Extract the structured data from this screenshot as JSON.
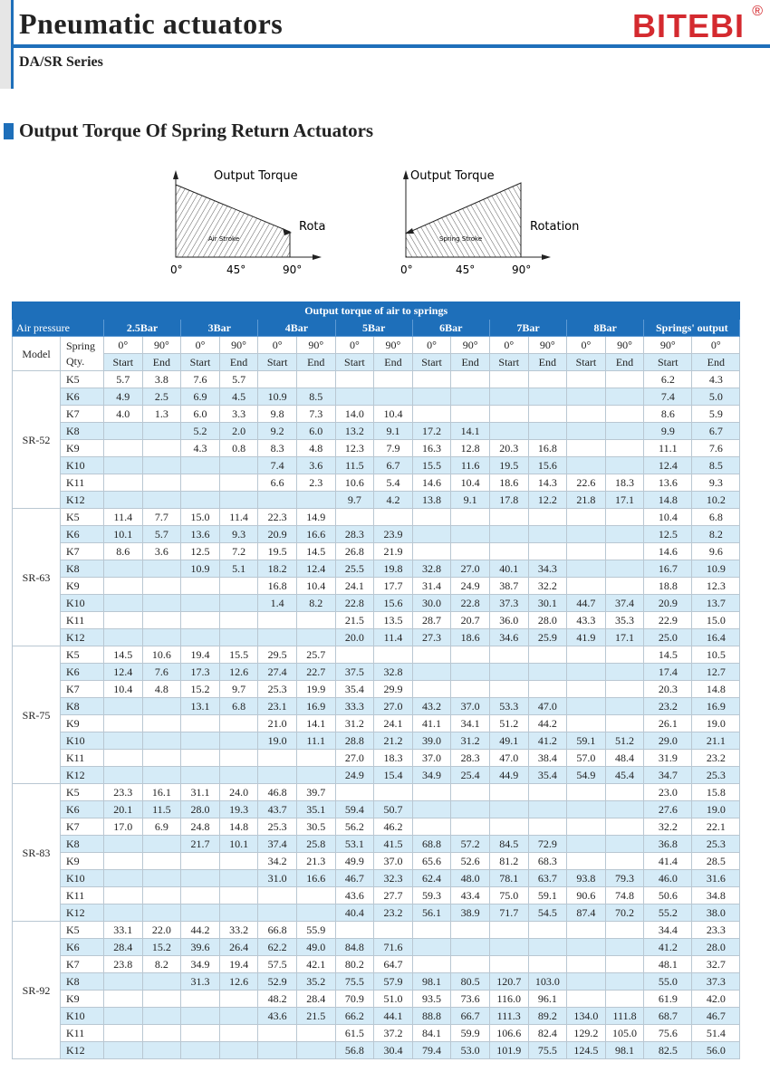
{
  "header": {
    "title": "Pneumatic actuators",
    "subtitle": "DA/SR Series",
    "logo": "BITEBI",
    "logo_mark": "®",
    "accent": "#1e6fba",
    "logo_color": "#d42a2f"
  },
  "section": {
    "title": "Output Torque Of Spring Return Actuators"
  },
  "diagrams": [
    {
      "y_label": "Output Torque",
      "x_label": "Rotation",
      "stroke_label": "Air Stroke",
      "ticks": [
        "0°",
        "45°",
        "90°"
      ]
    },
    {
      "y_label": "Output Torque",
      "x_label": "Rotation",
      "stroke_label": "Spring Stroke",
      "ticks": [
        "0°",
        "45°",
        "90°"
      ]
    }
  ],
  "table": {
    "title": "Output torque of air to springs",
    "air_pressure_label": "Air pressure",
    "pressures": [
      "2.5Bar",
      "3Bar",
      "4Bar",
      "5Bar",
      "6Bar",
      "7Bar",
      "8Bar",
      "Springs' output"
    ],
    "model_label": "Model",
    "spring_label": "Spring Qty.",
    "angles": [
      "0°",
      "90°",
      "0°",
      "90°",
      "0°",
      "90°",
      "0°",
      "90°",
      "0°",
      "90°",
      "0°",
      "90°",
      "0°",
      "90°",
      "90°",
      "0°"
    ],
    "positions": [
      "Start",
      "End",
      "Start",
      "End",
      "Start",
      "End",
      "Start",
      "End",
      "Start",
      "End",
      "Start",
      "End",
      "Start",
      "End",
      "Start",
      "End"
    ],
    "models": [
      {
        "model": "SR-52",
        "rows": [
          {
            "spring": "K5",
            "values": [
              "5.7",
              "3.8",
              "7.6",
              "5.7",
              "",
              "",
              "",
              "",
              "",
              "",
              "",
              "",
              "",
              "",
              "6.2",
              "4.3"
            ]
          },
          {
            "spring": "K6",
            "values": [
              "4.9",
              "2.5",
              "6.9",
              "4.5",
              "10.9",
              "8.5",
              "",
              "",
              "",
              "",
              "",
              "",
              "",
              "",
              "7.4",
              "5.0"
            ]
          },
          {
            "spring": "K7",
            "values": [
              "4.0",
              "1.3",
              "6.0",
              "3.3",
              "9.8",
              "7.3",
              "14.0",
              "10.4",
              "",
              "",
              "",
              "",
              "",
              "",
              "8.6",
              "5.9"
            ]
          },
          {
            "spring": "K8",
            "values": [
              "",
              "",
              "5.2",
              "2.0",
              "9.2",
              "6.0",
              "13.2",
              "9.1",
              "17.2",
              "14.1",
              "",
              "",
              "",
              "",
              "9.9",
              "6.7"
            ]
          },
          {
            "spring": "K9",
            "values": [
              "",
              "",
              "4.3",
              "0.8",
              "8.3",
              "4.8",
              "12.3",
              "7.9",
              "16.3",
              "12.8",
              "20.3",
              "16.8",
              "",
              "",
              "11.1",
              "7.6"
            ]
          },
          {
            "spring": "K10",
            "values": [
              "",
              "",
              "",
              "",
              "7.4",
              "3.6",
              "11.5",
              "6.7",
              "15.5",
              "11.6",
              "19.5",
              "15.6",
              "",
              "",
              "12.4",
              "8.5"
            ]
          },
          {
            "spring": "K11",
            "values": [
              "",
              "",
              "",
              "",
              "6.6",
              "2.3",
              "10.6",
              "5.4",
              "14.6",
              "10.4",
              "18.6",
              "14.3",
              "22.6",
              "18.3",
              "13.6",
              "9.3"
            ]
          },
          {
            "spring": "K12",
            "values": [
              "",
              "",
              "",
              "",
              "",
              "",
              "9.7",
              "4.2",
              "13.8",
              "9.1",
              "17.8",
              "12.2",
              "21.8",
              "17.1",
              "14.8",
              "10.2"
            ]
          }
        ]
      },
      {
        "model": "SR-63",
        "rows": [
          {
            "spring": "K5",
            "values": [
              "11.4",
              "7.7",
              "15.0",
              "11.4",
              "22.3",
              "14.9",
              "",
              "",
              "",
              "",
              "",
              "",
              "",
              "",
              "10.4",
              "6.8"
            ]
          },
          {
            "spring": "K6",
            "values": [
              "10.1",
              "5.7",
              "13.6",
              "9.3",
              "20.9",
              "16.6",
              "28.3",
              "23.9",
              "",
              "",
              "",
              "",
              "",
              "",
              "12.5",
              "8.2"
            ]
          },
          {
            "spring": "K7",
            "values": [
              "8.6",
              "3.6",
              "12.5",
              "7.2",
              "19.5",
              "14.5",
              "26.8",
              "21.9",
              "",
              "",
              "",
              "",
              "",
              "",
              "14.6",
              "9.6"
            ]
          },
          {
            "spring": "K8",
            "values": [
              "",
              "",
              "10.9",
              "5.1",
              "18.2",
              "12.4",
              "25.5",
              "19.8",
              "32.8",
              "27.0",
              "40.1",
              "34.3",
              "",
              "",
              "16.7",
              "10.9"
            ]
          },
          {
            "spring": "K9",
            "values": [
              "",
              "",
              "",
              "",
              "16.8",
              "10.4",
              "24.1",
              "17.7",
              "31.4",
              "24.9",
              "38.7",
              "32.2",
              "",
              "",
              "18.8",
              "12.3"
            ]
          },
          {
            "spring": "K10",
            "values": [
              "",
              "",
              "",
              "",
              "1.4",
              "8.2",
              "22.8",
              "15.6",
              "30.0",
              "22.8",
              "37.3",
              "30.1",
              "44.7",
              "37.4",
              "20.9",
              "13.7"
            ]
          },
          {
            "spring": "K11",
            "values": [
              "",
              "",
              "",
              "",
              "",
              "",
              "21.5",
              "13.5",
              "28.7",
              "20.7",
              "36.0",
              "28.0",
              "43.3",
              "35.3",
              "22.9",
              "15.0"
            ]
          },
          {
            "spring": "K12",
            "values": [
              "",
              "",
              "",
              "",
              "",
              "",
              "20.0",
              "11.4",
              "27.3",
              "18.6",
              "34.6",
              "25.9",
              "41.9",
              "17.1",
              "25.0",
              "16.4"
            ]
          }
        ]
      },
      {
        "model": "SR-75",
        "rows": [
          {
            "spring": "K5",
            "values": [
              "14.5",
              "10.6",
              "19.4",
              "15.5",
              "29.5",
              "25.7",
              "",
              "",
              "",
              "",
              "",
              "",
              "",
              "",
              "14.5",
              "10.5"
            ]
          },
          {
            "spring": "K6",
            "values": [
              "12.4",
              "7.6",
              "17.3",
              "12.6",
              "27.4",
              "22.7",
              "37.5",
              "32.8",
              "",
              "",
              "",
              "",
              "",
              "",
              "17.4",
              "12.7"
            ]
          },
          {
            "spring": "K7",
            "values": [
              "10.4",
              "4.8",
              "15.2",
              "9.7",
              "25.3",
              "19.9",
              "35.4",
              "29.9",
              "",
              "",
              "",
              "",
              "",
              "",
              "20.3",
              "14.8"
            ]
          },
          {
            "spring": "K8",
            "values": [
              "",
              "",
              "13.1",
              "6.8",
              "23.1",
              "16.9",
              "33.3",
              "27.0",
              "43.2",
              "37.0",
              "53.3",
              "47.0",
              "",
              "",
              "23.2",
              "16.9"
            ]
          },
          {
            "spring": "K9",
            "values": [
              "",
              "",
              "",
              "",
              "21.0",
              "14.1",
              "31.2",
              "24.1",
              "41.1",
              "34.1",
              "51.2",
              "44.2",
              "",
              "",
              "26.1",
              "19.0"
            ]
          },
          {
            "spring": "K10",
            "values": [
              "",
              "",
              "",
              "",
              "19.0",
              "11.1",
              "28.8",
              "21.2",
              "39.0",
              "31.2",
              "49.1",
              "41.2",
              "59.1",
              "51.2",
              "29.0",
              "21.1"
            ]
          },
          {
            "spring": "K11",
            "values": [
              "",
              "",
              "",
              "",
              "",
              "",
              "27.0",
              "18.3",
              "37.0",
              "28.3",
              "47.0",
              "38.4",
              "57.0",
              "48.4",
              "31.9",
              "23.2"
            ]
          },
          {
            "spring": "K12",
            "values": [
              "",
              "",
              "",
              "",
              "",
              "",
              "24.9",
              "15.4",
              "34.9",
              "25.4",
              "44.9",
              "35.4",
              "54.9",
              "45.4",
              "34.7",
              "25.3"
            ]
          }
        ]
      },
      {
        "model": "SR-83",
        "rows": [
          {
            "spring": "K5",
            "values": [
              "23.3",
              "16.1",
              "31.1",
              "24.0",
              "46.8",
              "39.7",
              "",
              "",
              "",
              "",
              "",
              "",
              "",
              "",
              "23.0",
              "15.8"
            ]
          },
          {
            "spring": "K6",
            "values": [
              "20.1",
              "11.5",
              "28.0",
              "19.3",
              "43.7",
              "35.1",
              "59.4",
              "50.7",
              "",
              "",
              "",
              "",
              "",
              "",
              "27.6",
              "19.0"
            ]
          },
          {
            "spring": "K7",
            "values": [
              "17.0",
              "6.9",
              "24.8",
              "14.8",
              "25.3",
              "30.5",
              "56.2",
              "46.2",
              "",
              "",
              "",
              "",
              "",
              "",
              "32.2",
              "22.1"
            ]
          },
          {
            "spring": "K8",
            "values": [
              "",
              "",
              "21.7",
              "10.1",
              "37.4",
              "25.8",
              "53.1",
              "41.5",
              "68.8",
              "57.2",
              "84.5",
              "72.9",
              "",
              "",
              "36.8",
              "25.3"
            ]
          },
          {
            "spring": "K9",
            "values": [
              "",
              "",
              "",
              "",
              "34.2",
              "21.3",
              "49.9",
              "37.0",
              "65.6",
              "52.6",
              "81.2",
              "68.3",
              "",
              "",
              "41.4",
              "28.5"
            ]
          },
          {
            "spring": "K10",
            "values": [
              "",
              "",
              "",
              "",
              "31.0",
              "16.6",
              "46.7",
              "32.3",
              "62.4",
              "48.0",
              "78.1",
              "63.7",
              "93.8",
              "79.3",
              "46.0",
              "31.6"
            ]
          },
          {
            "spring": "K11",
            "values": [
              "",
              "",
              "",
              "",
              "",
              "",
              "43.6",
              "27.7",
              "59.3",
              "43.4",
              "75.0",
              "59.1",
              "90.6",
              "74.8",
              "50.6",
              "34.8"
            ]
          },
          {
            "spring": "K12",
            "values": [
              "",
              "",
              "",
              "",
              "",
              "",
              "40.4",
              "23.2",
              "56.1",
              "38.9",
              "71.7",
              "54.5",
              "87.4",
              "70.2",
              "55.2",
              "38.0"
            ]
          }
        ]
      },
      {
        "model": "SR-92",
        "rows": [
          {
            "spring": "K5",
            "values": [
              "33.1",
              "22.0",
              "44.2",
              "33.2",
              "66.8",
              "55.9",
              "",
              "",
              "",
              "",
              "",
              "",
              "",
              "",
              "34.4",
              "23.3"
            ]
          },
          {
            "spring": "K6",
            "values": [
              "28.4",
              "15.2",
              "39.6",
              "26.4",
              "62.2",
              "49.0",
              "84.8",
              "71.6",
              "",
              "",
              "",
              "",
              "",
              "",
              "41.2",
              "28.0"
            ]
          },
          {
            "spring": "K7",
            "values": [
              "23.8",
              "8.2",
              "34.9",
              "19.4",
              "57.5",
              "42.1",
              "80.2",
              "64.7",
              "",
              "",
              "",
              "",
              "",
              "",
              "48.1",
              "32.7"
            ]
          },
          {
            "spring": "K8",
            "values": [
              "",
              "",
              "31.3",
              "12.6",
              "52.9",
              "35.2",
              "75.5",
              "57.9",
              "98.1",
              "80.5",
              "120.7",
              "103.0",
              "",
              "",
              "55.0",
              "37.3"
            ]
          },
          {
            "spring": "K9",
            "values": [
              "",
              "",
              "",
              "",
              "48.2",
              "28.4",
              "70.9",
              "51.0",
              "93.5",
              "73.6",
              "116.0",
              "96.1",
              "",
              "",
              "61.9",
              "42.0"
            ]
          },
          {
            "spring": "K10",
            "values": [
              "",
              "",
              "",
              "",
              "43.6",
              "21.5",
              "66.2",
              "44.1",
              "88.8",
              "66.7",
              "111.3",
              "89.2",
              "134.0",
              "111.8",
              "68.7",
              "46.7"
            ]
          },
          {
            "spring": "K11",
            "values": [
              "",
              "",
              "",
              "",
              "",
              "",
              "61.5",
              "37.2",
              "84.1",
              "59.9",
              "106.6",
              "82.4",
              "129.2",
              "105.0",
              "75.6",
              "51.4"
            ]
          },
          {
            "spring": "K12",
            "values": [
              "",
              "",
              "",
              "",
              "",
              "",
              "56.8",
              "30.4",
              "79.4",
              "53.0",
              "101.9",
              "75.5",
              "124.5",
              "98.1",
              "82.5",
              "56.0"
            ]
          }
        ]
      }
    ]
  }
}
